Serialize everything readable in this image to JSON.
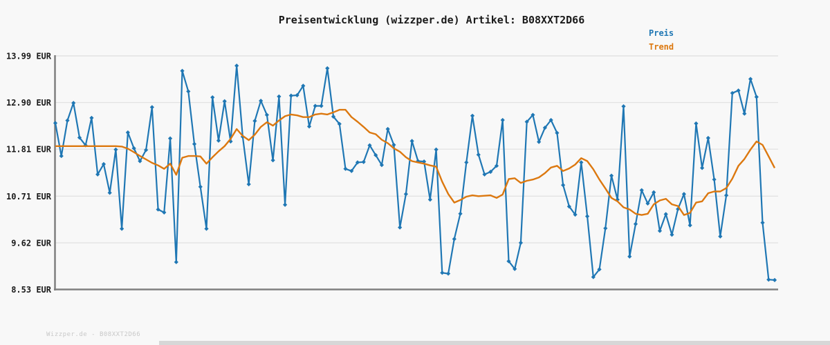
{
  "title": "Preisentwicklung (wizzper.de) Artikel: B08XXT2D66",
  "legend": {
    "preis_label": "Preis",
    "trend_label": "Trend"
  },
  "watermark": "Wizzper.de - B08XXT2D66",
  "colors": {
    "preis": "#1f77b4",
    "trend": "#dc780f",
    "grid": "#e3e3e3",
    "axis": "#7f7f7f",
    "background": "#f8f8f8",
    "tick_text": "#1a1a1a",
    "watermark_text": "#c8c8c8",
    "footer_bar": "#d7d7d7"
  },
  "chart_data": {
    "type": "line",
    "title": "Preisentwicklung (wizzper.de) Artikel: B08XXT2D66",
    "xlabel": "",
    "ylabel": "",
    "ylim": [
      8.53,
      13.99
    ],
    "grid": "horizontal",
    "legend_position": "top-right",
    "x_tick_labels_visible": false,
    "yticks": [
      {
        "value": 13.99,
        "label": "13.99 EUR"
      },
      {
        "value": 12.9,
        "label": "12.90 EUR"
      },
      {
        "value": 11.81,
        "label": "11.81 EUR"
      },
      {
        "value": 10.71,
        "label": "10.71 EUR"
      },
      {
        "value": 9.62,
        "label": "9.62 EUR"
      },
      {
        "value": 8.53,
        "label": "8.53 EUR"
      }
    ],
    "series": [
      {
        "name": "Preis",
        "color": "#1f77b4",
        "marker": "diamond",
        "values": [
          12.42,
          11.65,
          12.48,
          12.89,
          12.08,
          11.9,
          12.54,
          11.22,
          11.46,
          10.79,
          11.8,
          9.95,
          12.2,
          11.83,
          11.53,
          11.79,
          12.79,
          10.4,
          10.33,
          12.06,
          9.17,
          13.64,
          13.16,
          11.93,
          10.93,
          9.95,
          13.02,
          12.01,
          12.93,
          11.99,
          13.76,
          12.1,
          10.99,
          12.47,
          12.94,
          12.61,
          11.55,
          13.04,
          10.51,
          13.06,
          13.07,
          13.29,
          12.34,
          12.82,
          12.82,
          13.7,
          12.57,
          12.4,
          11.35,
          11.3,
          11.5,
          11.51,
          11.9,
          11.67,
          11.44,
          12.28,
          11.91,
          9.98,
          10.76,
          12.0,
          11.53,
          11.52,
          10.63,
          11.8,
          8.92,
          8.9,
          9.71,
          10.3,
          11.5,
          12.59,
          11.68,
          11.22,
          11.28,
          11.42,
          12.49,
          9.19,
          9.01,
          9.62,
          12.45,
          12.61,
          11.98,
          12.31,
          12.49,
          12.19,
          10.97,
          10.47,
          10.28,
          11.5,
          10.24,
          8.82,
          9.0,
          9.96,
          11.19,
          10.63,
          12.81,
          9.3,
          10.06,
          10.85,
          10.54,
          10.8,
          9.9,
          10.29,
          9.81,
          10.41,
          10.76,
          10.03,
          12.41,
          11.37,
          12.07,
          11.1,
          9.77,
          10.73,
          13.12,
          13.18,
          12.64,
          13.45,
          13.03,
          10.09,
          8.76,
          8.75
        ]
      },
      {
        "name": "Trend",
        "color": "#dc780f",
        "marker": "none",
        "values": [
          11.88,
          11.88,
          11.88,
          11.88,
          11.88,
          11.88,
          11.88,
          11.88,
          11.88,
          11.88,
          11.88,
          11.87,
          11.82,
          11.74,
          11.65,
          11.57,
          11.49,
          11.43,
          11.35,
          11.47,
          11.21,
          11.61,
          11.65,
          11.65,
          11.64,
          11.47,
          11.62,
          11.76,
          11.88,
          12.05,
          12.28,
          12.12,
          12.02,
          12.15,
          12.33,
          12.44,
          12.36,
          12.48,
          12.58,
          12.62,
          12.6,
          12.56,
          12.56,
          12.62,
          12.64,
          12.62,
          12.67,
          12.73,
          12.73,
          12.56,
          12.45,
          12.33,
          12.2,
          12.16,
          12.03,
          11.95,
          11.83,
          11.75,
          11.62,
          11.53,
          11.5,
          11.47,
          11.43,
          11.4,
          11.05,
          10.76,
          10.56,
          10.62,
          10.7,
          10.73,
          10.71,
          10.72,
          10.73,
          10.67,
          10.75,
          11.11,
          11.13,
          11.02,
          11.07,
          11.1,
          11.15,
          11.25,
          11.38,
          11.42,
          11.3,
          11.36,
          11.45,
          11.6,
          11.53,
          11.34,
          11.1,
          10.89,
          10.67,
          10.59,
          10.45,
          10.4,
          10.3,
          10.27,
          10.3,
          10.52,
          10.61,
          10.65,
          10.52,
          10.48,
          10.27,
          10.32,
          10.56,
          10.59,
          10.78,
          10.82,
          10.82,
          10.9,
          11.12,
          11.42,
          11.58,
          11.8,
          11.99,
          11.91,
          11.64,
          11.37
        ]
      }
    ]
  }
}
